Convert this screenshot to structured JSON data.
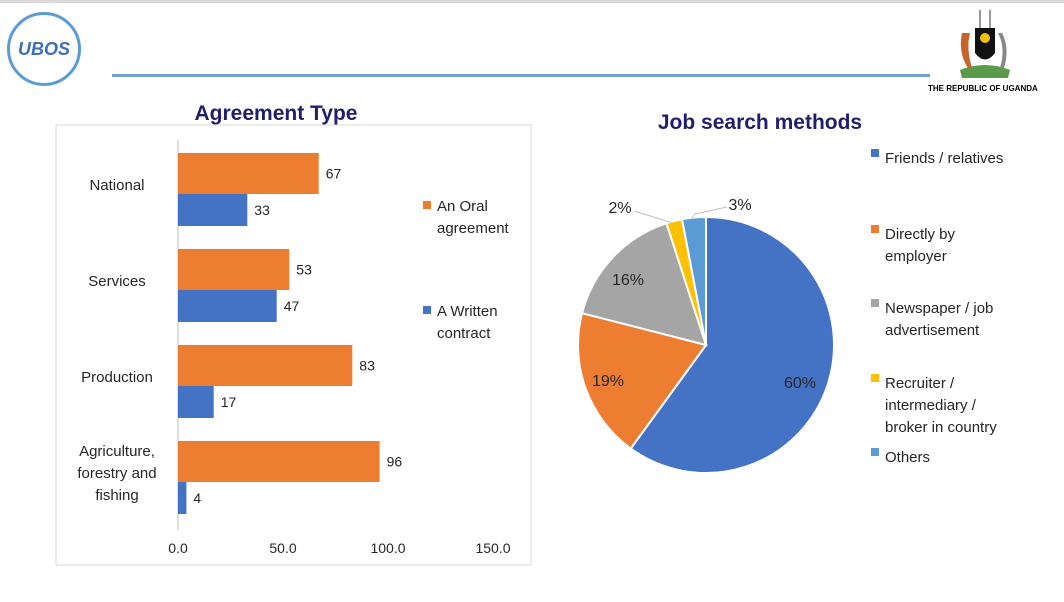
{
  "header": {
    "logo_text": "UBOS",
    "republic": "THE REPUBLIC OF UGANDA"
  },
  "chart_data": [
    {
      "type": "bar",
      "orientation": "horizontal",
      "title": "Agreement Type",
      "categories": [
        "National",
        "Services",
        "Production",
        "Agriculture, forestry and fishing"
      ],
      "series": [
        {
          "name": "An Oral agreement",
          "color": "#ed7d31",
          "values": [
            67,
            53,
            83,
            96
          ]
        },
        {
          "name": "A Written contract",
          "color": "#4472c4",
          "values": [
            33,
            47,
            17,
            4
          ]
        }
      ],
      "xlim": [
        0,
        150
      ],
      "xticks": [
        "0.0",
        "50.0",
        "100.0",
        "150.0"
      ],
      "grid": false,
      "legend": "right"
    },
    {
      "type": "pie",
      "title": "Job search methods",
      "labels": [
        "Friends / relatives",
        "Directly by employer",
        "Newspaper / job advertisement",
        "Recruiter / intermediary / broker in country",
        "Others"
      ],
      "values": [
        60,
        19,
        16,
        2,
        3
      ],
      "data_labels": [
        "60%",
        "19%",
        "16%",
        "2%",
        "3%"
      ],
      "colors": [
        "#4472c4",
        "#ed7d31",
        "#a5a5a5",
        "#ffc000",
        "#5b9bd5"
      ],
      "legend": "right"
    }
  ]
}
